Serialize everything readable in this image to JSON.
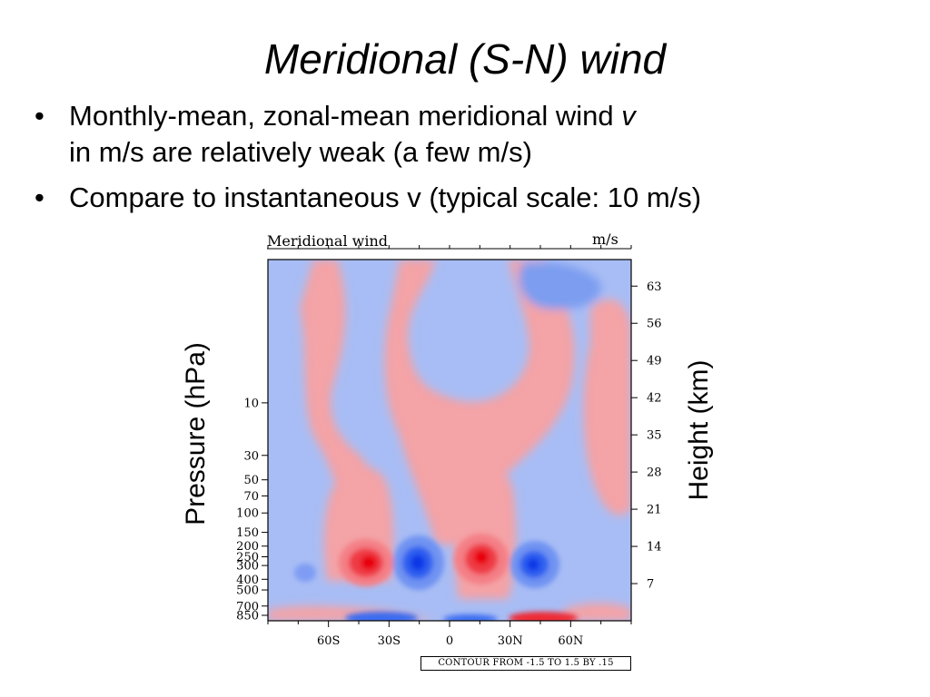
{
  "slide": {
    "title": "Meridional (S-N) wind",
    "bullets": [
      {
        "text": "Monthly-mean, zonal-mean meridional wind ",
        "italic": "v",
        "line2": "in m/s are relatively weak (a few m/s)"
      },
      {
        "text": "Compare to instantaneous v (typical scale: 10 m/s)"
      }
    ]
  },
  "chart_data": {
    "type": "heatmap",
    "title": "Meridional wind",
    "units": "m/s",
    "xlabel": "",
    "ylabel_left": "Pressure (hPa)",
    "ylabel_right": "Height (km)",
    "x_ticks": [
      "60S",
      "30S",
      "0",
      "30N",
      "60N"
    ],
    "x_tick_values": [
      -60,
      -30,
      0,
      30,
      60
    ],
    "xlim": [
      -90,
      90
    ],
    "pressure_ticks": [
      "10",
      "30",
      "50",
      "70",
      "100",
      "150",
      "200",
      "250",
      "300",
      "400",
      "500",
      "700",
      "850"
    ],
    "pressure_tick_values": [
      10,
      30,
      50,
      70,
      100,
      150,
      200,
      250,
      300,
      400,
      500,
      700,
      850
    ],
    "height_ticks": [
      "7",
      "14",
      "21",
      "28",
      "35",
      "42",
      "49",
      "56",
      "63"
    ],
    "height_tick_values": [
      7,
      14,
      21,
      28,
      35,
      42,
      49,
      56,
      63
    ],
    "contour_label": "CONTOUR FROM -1.5 TO 1.5 BY .15",
    "contour_min": -1.5,
    "contour_max": 1.5,
    "contour_interval": 0.15,
    "colors": {
      "positive": "#f4a3a6",
      "negative": "#a8bdf5",
      "strong_positive": "#e8000b",
      "strong_negative": "#0a37e6"
    }
  }
}
